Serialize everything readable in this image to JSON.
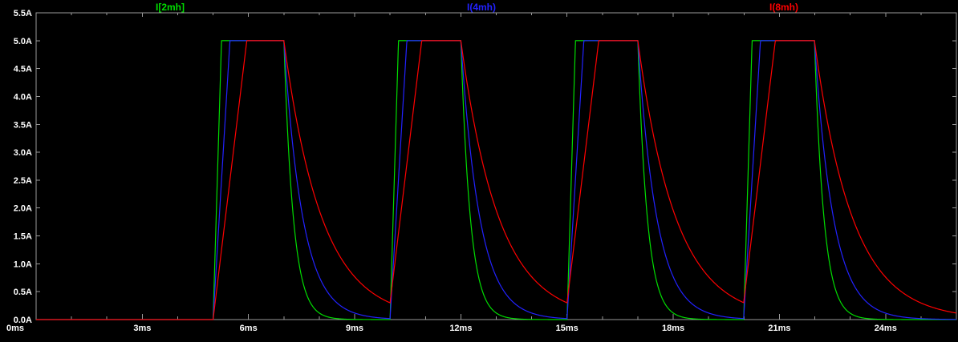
{
  "window": {
    "background": "#000000"
  },
  "chart_data": {
    "type": "line",
    "title": "",
    "background": "#000000",
    "axis_color": "#9a9a9a",
    "text_color": "#ffffff",
    "xlim_ms": [
      0,
      26
    ],
    "ylim_A": [
      0,
      5.5
    ],
    "x_minor_tick_step_ms": 1,
    "x_ticks": [
      {
        "value": 0,
        "label": "0ms"
      },
      {
        "value": 3,
        "label": "3ms"
      },
      {
        "value": 6,
        "label": "6ms"
      },
      {
        "value": 9,
        "label": "9ms"
      },
      {
        "value": 12,
        "label": "12ms"
      },
      {
        "value": 15,
        "label": "15ms"
      },
      {
        "value": 18,
        "label": "18ms"
      },
      {
        "value": 21,
        "label": "21ms"
      },
      {
        "value": 24,
        "label": "24ms"
      }
    ],
    "y_ticks": [
      {
        "value": 5.5,
        "label": "5.5A"
      },
      {
        "value": 5.0,
        "label": "5.0A"
      },
      {
        "value": 4.5,
        "label": "4.5A"
      },
      {
        "value": 4.0,
        "label": "4.0A"
      },
      {
        "value": 3.5,
        "label": "3.5A"
      },
      {
        "value": 3.0,
        "label": "3.0A"
      },
      {
        "value": 2.5,
        "label": "2.5A"
      },
      {
        "value": 2.0,
        "label": "2.0A"
      },
      {
        "value": 1.5,
        "label": "1.5A"
      },
      {
        "value": 1.0,
        "label": "1.0A"
      },
      {
        "value": 0.5,
        "label": "0.5A"
      },
      {
        "value": 0.0,
        "label": "0.0A"
      }
    ],
    "pulses": {
      "first_rise_ms": 5,
      "period_ms": 5,
      "on_duration_ms": 2,
      "count": 4,
      "amplitude_A": 5.0
    },
    "series": [
      {
        "name": "I[2mh]",
        "color": "#00dd00",
        "rise_slope_A_per_ms": 21.0,
        "decay_tau_ms": 0.267,
        "peak_A": 5.0,
        "baseline_A": 0.0
      },
      {
        "name": "I(4mh)",
        "color": "#2222ff",
        "rise_slope_A_per_ms": 10.5,
        "decay_tau_ms": 0.533,
        "peak_A": 5.0,
        "baseline_A": 0.0
      },
      {
        "name": "I(8mh)",
        "color": "#ff0000",
        "rise_slope_A_per_ms": 5.25,
        "decay_tau_ms": 1.067,
        "peak_A": 5.0,
        "baseline_A": 0.0
      }
    ]
  }
}
